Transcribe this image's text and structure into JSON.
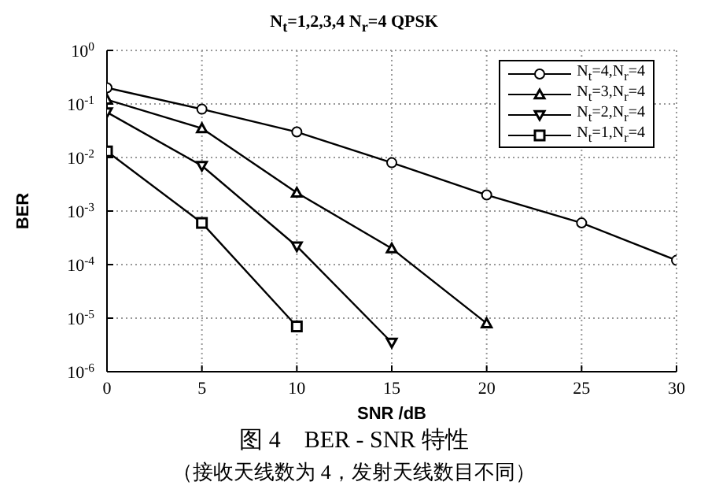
{
  "chart_data": {
    "type": "line",
    "title": "N$_{t}$=1,2,3,4   N$_{r}$=4 QPSK",
    "xlabel": "SNR /dB",
    "ylabel": "BER",
    "annotations": [
      "图 4　BER - SNR 特性",
      "（接收天线数为 4，发射天线数目不同）"
    ],
    "x": [
      0,
      5,
      10,
      15,
      20,
      25,
      30
    ],
    "series": [
      {
        "name": "N$_{t}$=4,N$_{r}$=4",
        "color": "#000000",
        "marker": "circle",
        "values": [
          0.2,
          0.08,
          0.03,
          0.008,
          0.002,
          0.0006,
          0.00012
        ]
      },
      {
        "name": "N$_{t}$=3,N$_{r}$=4",
        "color": "#000000",
        "marker": "triangle",
        "values": [
          0.12,
          0.035,
          0.0022,
          0.0002,
          8e-06,
          null,
          null
        ]
      },
      {
        "name": "N$_{t}$=2,N$_{r}$=4",
        "color": "#000000",
        "marker": "triangle-down",
        "values": [
          0.07,
          0.007,
          0.00022,
          3.5e-06,
          null,
          null,
          null
        ]
      },
      {
        "name": "N$_{t}$=1,N$_{r}$=4",
        "color": "#000000",
        "marker": "square",
        "values": [
          0.013,
          0.0006,
          7e-06,
          null,
          null,
          null,
          null
        ]
      }
    ],
    "log": "y",
    "xlim": [
      0,
      30
    ],
    "xticks": [
      0,
      5,
      10,
      15,
      20,
      25,
      30
    ],
    "ylim": [
      1e-06,
      1
    ],
    "yticks": [
      {
        "value": 1e-06,
        "label": "10$^{-6}$"
      },
      {
        "value": 1e-05,
        "label": "10$^{-5}$"
      },
      {
        "value": 0.0001,
        "label": "10$^{-4}$"
      },
      {
        "value": 0.001,
        "label": "10$^{-3}$"
      },
      {
        "value": 0.01,
        "label": "10$^{-2}$"
      },
      {
        "value": 0.1,
        "label": "10$^{-1}$"
      },
      {
        "value": 1,
        "label": "10$^{0}$"
      }
    ],
    "grid": true,
    "legend": "top right",
    "line_style": "solid"
  }
}
